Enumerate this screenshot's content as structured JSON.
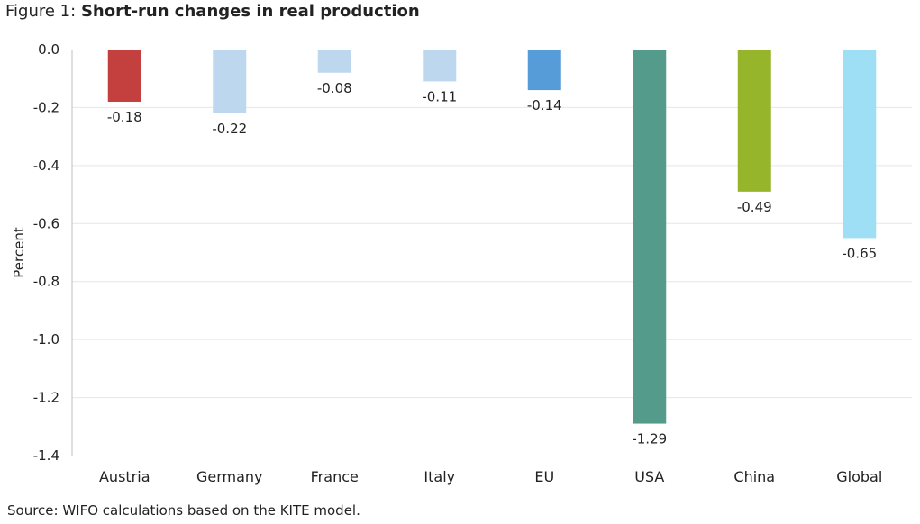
{
  "figure": {
    "label": "Figure 1:",
    "title": "Short-run changes in real production",
    "source": "Source: WIFO calculations based on the KITE model."
  },
  "chart_data": {
    "type": "bar",
    "title": "Short-run changes in real production",
    "xlabel": "",
    "ylabel": "Percent",
    "ylim": [
      -1.4,
      0.0
    ],
    "yticks": [
      "0.0",
      "-0.2",
      "-0.4",
      "-0.6",
      "-0.8",
      "-1.0",
      "-1.2",
      "-1.4"
    ],
    "grid": true,
    "categories": [
      "Austria",
      "Germany",
      "France",
      "Italy",
      "EU",
      "USA",
      "China",
      "Global"
    ],
    "values": [
      -0.18,
      -0.22,
      -0.08,
      -0.11,
      -0.14,
      -1.29,
      -0.49,
      -0.65
    ],
    "data_labels": [
      "-0.18",
      "-0.22",
      "-0.08",
      "-0.11",
      "-0.14",
      "-1.29",
      "-0.49",
      "-0.65"
    ],
    "colors": [
      "#c4403f",
      "#bdd8ee",
      "#bdd8ee",
      "#bdd8ee",
      "#559cd8",
      "#549b8c",
      "#97b52b",
      "#9edff6"
    ]
  }
}
